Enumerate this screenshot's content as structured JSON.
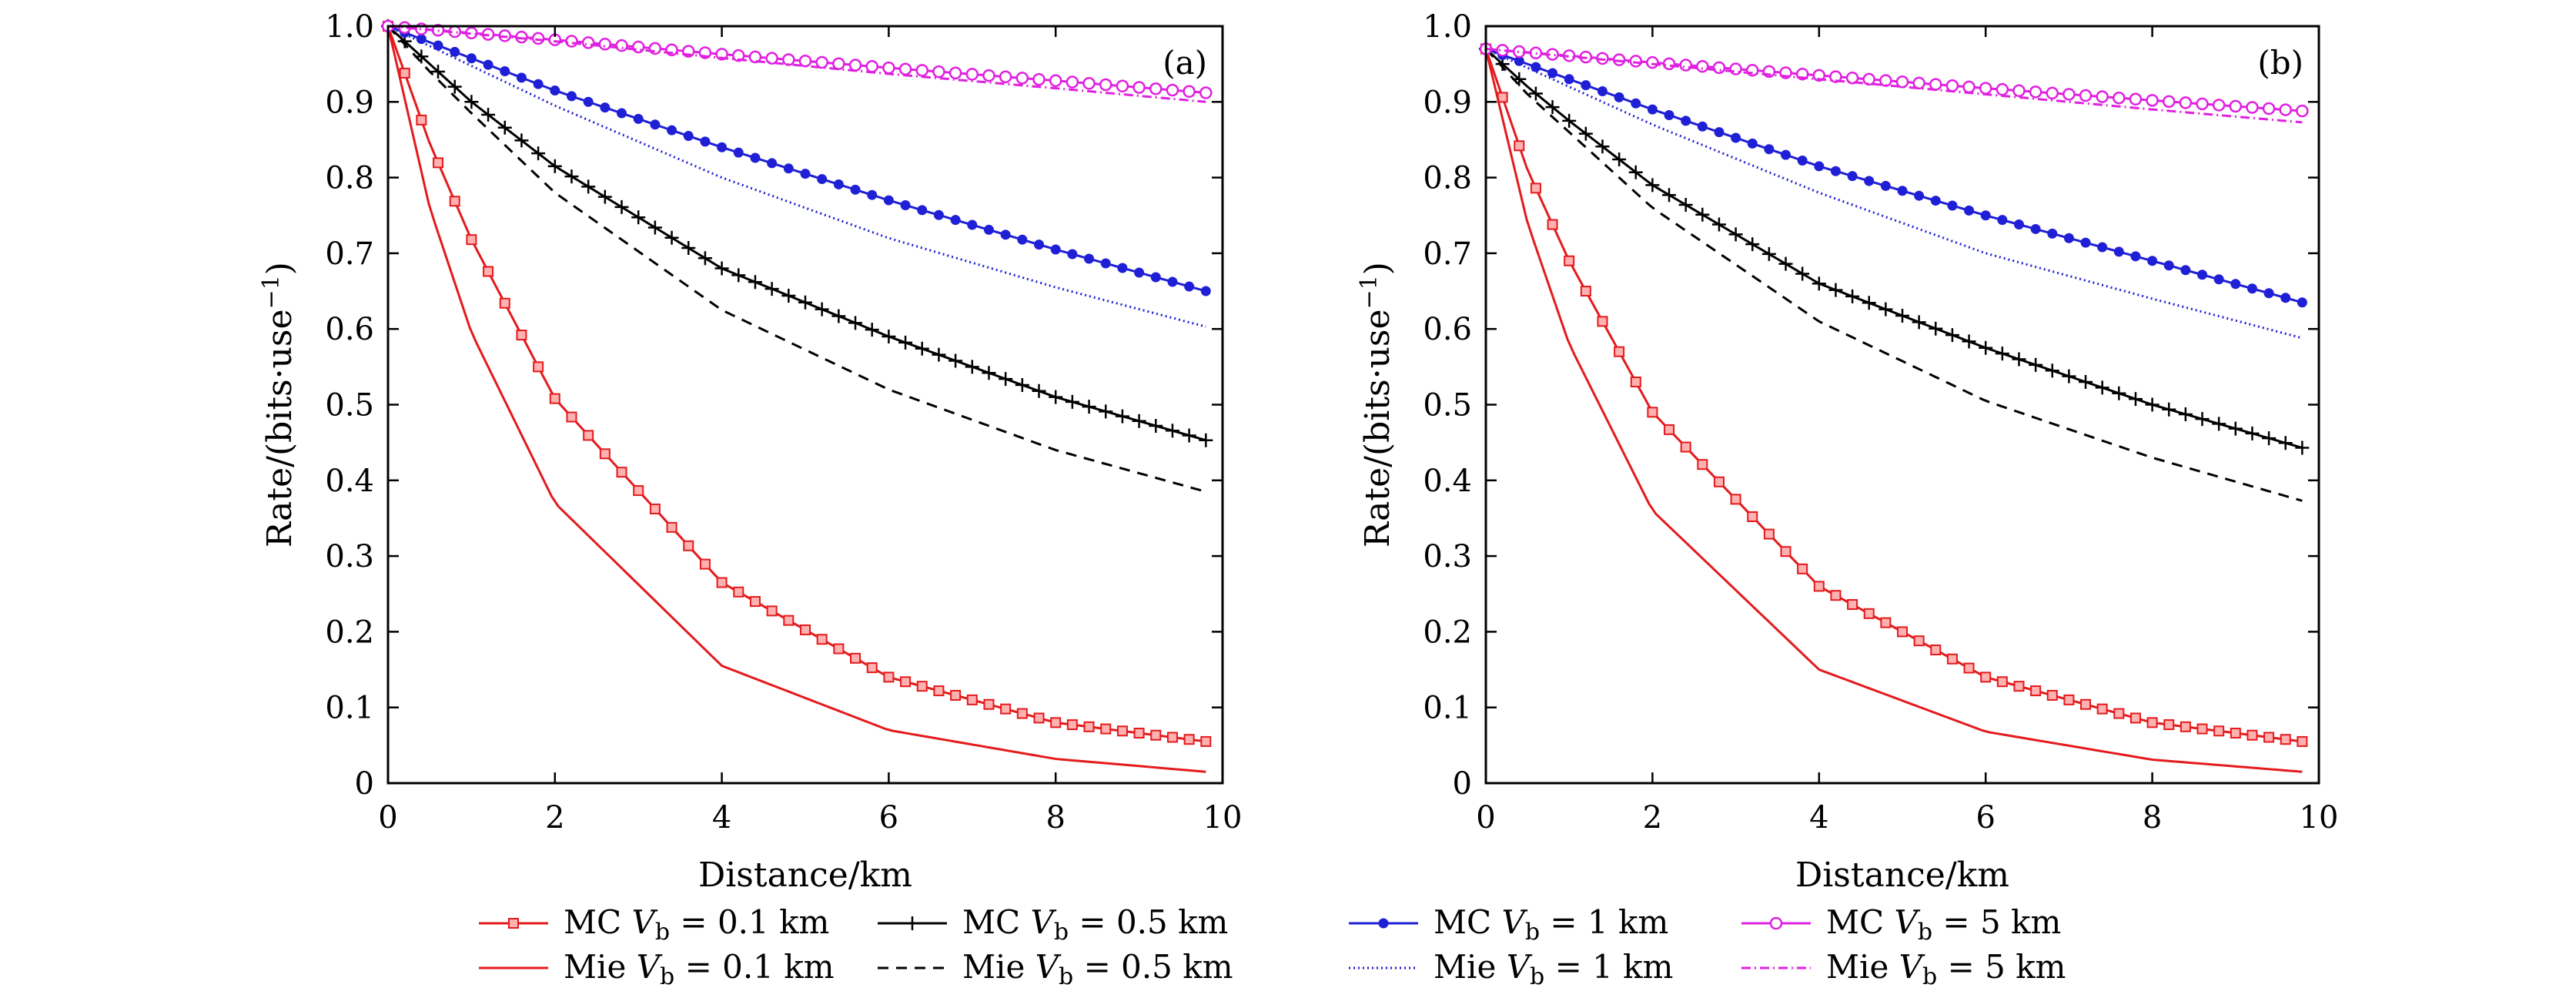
{
  "chart_data": [
    {
      "panel": "(a)",
      "type": "line",
      "xlabel": "Distance/km",
      "ylabel": "Rate/(bits·use",
      "ylabel_sup": "−1",
      "ylabel_close": ")",
      "xlim": [
        0,
        10
      ],
      "ylim": [
        0,
        1.0
      ],
      "xticks": [
        0,
        2,
        4,
        6,
        8,
        10
      ],
      "yticks": [
        0,
        0.1,
        0.2,
        0.3,
        0.4,
        0.5,
        0.6,
        0.7,
        0.8,
        0.9,
        1.0
      ],
      "ytick_labels": [
        "0",
        "0.1",
        "0.2",
        "0.3",
        "0.4",
        "0.5",
        "0.6",
        "0.7",
        "0.8",
        "0.9",
        "1.0"
      ],
      "grid": false,
      "series": [
        {
          "name": "MC V_b = 0.1 km",
          "x0": 0,
          "x1": 9.8,
          "y0": 1.0,
          "y1": 0.055,
          "points": [
            [
              0.5,
              0.845
            ],
            [
              1.0,
              0.718
            ],
            [
              2.0,
              0.508
            ],
            [
              4.0,
              0.265
            ],
            [
              6.0,
              0.14
            ],
            [
              8.0,
              0.08
            ]
          ]
        },
        {
          "name": "Mie V_b = 0.1 km",
          "x0": 0,
          "x1": 9.8,
          "y0": 1.0,
          "y1": 0.015,
          "points": [
            [
              0.5,
              0.76
            ],
            [
              1.0,
              0.595
            ],
            [
              2.0,
              0.37
            ],
            [
              4.0,
              0.155
            ],
            [
              6.0,
              0.07
            ],
            [
              8.0,
              0.032
            ]
          ]
        },
        {
          "name": "MC V_b = 0.5 km",
          "x0": 0,
          "x1": 9.8,
          "y0": 1.0,
          "y1": 0.453,
          "points": [
            [
              0.5,
              0.95
            ],
            [
              1.0,
              0.9
            ],
            [
              2.0,
              0.815
            ],
            [
              4.0,
              0.68
            ],
            [
              6.0,
              0.59
            ],
            [
              8.0,
              0.51
            ]
          ]
        },
        {
          "name": "Mie V_b = 0.5 km",
          "x0": 0,
          "x1": 9.8,
          "y0": 1.0,
          "y1": 0.385,
          "points": [
            [
              0.5,
              0.94
            ],
            [
              1.0,
              0.885
            ],
            [
              2.0,
              0.78
            ],
            [
              4.0,
              0.625
            ],
            [
              6.0,
              0.52
            ],
            [
              8.0,
              0.44
            ]
          ]
        },
        {
          "name": "MC V_b = 1 km",
          "x0": 0,
          "x1": 9.8,
          "y0": 1.0,
          "y1": 0.65,
          "points": [
            [
              2.0,
              0.915
            ],
            [
              4.0,
              0.84
            ],
            [
              6.0,
              0.77
            ],
            [
              8.0,
              0.705
            ]
          ]
        },
        {
          "name": "Mie V_b = 1 km",
          "x0": 0,
          "x1": 9.8,
          "y0": 1.0,
          "y1": 0.603,
          "points": [
            [
              2.0,
              0.895
            ],
            [
              4.0,
              0.8
            ],
            [
              6.0,
              0.72
            ],
            [
              8.0,
              0.655
            ]
          ]
        },
        {
          "name": "MC V_b = 5 km",
          "x0": 0,
          "x1": 9.8,
          "y0": 1.0,
          "y1": 0.912,
          "points": [
            [
              2.0,
              0.982
            ],
            [
              4.0,
              0.963
            ],
            [
              6.0,
              0.945
            ],
            [
              8.0,
              0.928
            ]
          ]
        },
        {
          "name": "Mie V_b = 5 km",
          "x0": 0,
          "x1": 9.8,
          "y0": 1.0,
          "y1": 0.9,
          "points": [
            [
              2.0,
              0.98
            ],
            [
              4.0,
              0.958
            ],
            [
              6.0,
              0.937
            ],
            [
              8.0,
              0.918
            ]
          ]
        }
      ]
    },
    {
      "panel": "(b)",
      "type": "line",
      "xlabel": "Distance/km",
      "ylabel": "Rate/(bits·use",
      "ylabel_sup": "−1",
      "ylabel_close": ")",
      "xlim": [
        0,
        10
      ],
      "ylim": [
        0,
        1.0
      ],
      "xticks": [
        0,
        2,
        4,
        6,
        8,
        10
      ],
      "yticks": [
        0,
        0.1,
        0.2,
        0.3,
        0.4,
        0.5,
        0.6,
        0.7,
        0.8,
        0.9,
        1.0
      ],
      "ytick_labels": [
        "0",
        "0.1",
        "0.2",
        "0.3",
        "0.4",
        "0.5",
        "0.6",
        "0.7",
        "0.8",
        "0.9",
        "1.0"
      ],
      "grid": false,
      "series": [
        {
          "name": "MC V_b = 0.1 km",
          "x0": 0,
          "x1": 9.8,
          "y0": 0.97,
          "y1": 0.055,
          "points": [
            [
              0.5,
              0.81
            ],
            [
              1.0,
              0.69
            ],
            [
              2.0,
              0.49
            ],
            [
              4.0,
              0.26
            ],
            [
              6.0,
              0.14
            ],
            [
              8.0,
              0.08
            ]
          ]
        },
        {
          "name": "Mie V_b = 0.1 km",
          "x0": 0,
          "x1": 9.8,
          "y0": 0.97,
          "y1": 0.015,
          "points": [
            [
              0.5,
              0.74
            ],
            [
              1.0,
              0.58
            ],
            [
              2.0,
              0.36
            ],
            [
              4.0,
              0.15
            ],
            [
              6.0,
              0.068
            ],
            [
              8.0,
              0.031
            ]
          ]
        },
        {
          "name": "MC V_b = 0.5 km",
          "x0": 0,
          "x1": 9.8,
          "y0": 0.97,
          "y1": 0.443,
          "points": [
            [
              0.5,
              0.92
            ],
            [
              1.0,
              0.875
            ],
            [
              2.0,
              0.79
            ],
            [
              4.0,
              0.66
            ],
            [
              6.0,
              0.575
            ],
            [
              8.0,
              0.5
            ]
          ]
        },
        {
          "name": "Mie V_b = 0.5 km",
          "x0": 0,
          "x1": 9.8,
          "y0": 0.97,
          "y1": 0.373,
          "points": [
            [
              0.5,
              0.91
            ],
            [
              1.0,
              0.86
            ],
            [
              2.0,
              0.76
            ],
            [
              4.0,
              0.61
            ],
            [
              6.0,
              0.505
            ],
            [
              8.0,
              0.43
            ]
          ]
        },
        {
          "name": "MC V_b = 1 km",
          "x0": 0,
          "x1": 9.8,
          "y0": 0.97,
          "y1": 0.635,
          "points": [
            [
              2.0,
              0.89
            ],
            [
              4.0,
              0.815
            ],
            [
              6.0,
              0.75
            ],
            [
              8.0,
              0.69
            ]
          ]
        },
        {
          "name": "Mie V_b = 1 km",
          "x0": 0,
          "x1": 9.8,
          "y0": 0.97,
          "y1": 0.588,
          "points": [
            [
              2.0,
              0.87
            ],
            [
              4.0,
              0.78
            ],
            [
              6.0,
              0.7
            ],
            [
              8.0,
              0.64
            ]
          ]
        },
        {
          "name": "MC V_b = 5 km",
          "x0": 0,
          "x1": 9.8,
          "y0": 0.97,
          "y1": 0.888,
          "points": [
            [
              2.0,
              0.952
            ],
            [
              4.0,
              0.935
            ],
            [
              6.0,
              0.918
            ],
            [
              8.0,
              0.902
            ]
          ]
        },
        {
          "name": "Mie V_b = 5 km",
          "x0": 0,
          "x1": 9.8,
          "y0": 0.97,
          "y1": 0.873,
          "points": [
            [
              2.0,
              0.95
            ],
            [
              4.0,
              0.93
            ],
            [
              6.0,
              0.91
            ],
            [
              8.0,
              0.89
            ]
          ]
        }
      ]
    }
  ],
  "styles": [
    {
      "color": "#e41a1c",
      "dash": "",
      "marker": "square"
    },
    {
      "color": "#e41a1c",
      "dash": "",
      "marker": "none"
    },
    {
      "color": "#000000",
      "dash": "",
      "marker": "plus"
    },
    {
      "color": "#000000",
      "dash": "14,10",
      "marker": "none"
    },
    {
      "color": "#1f1fd6",
      "dash": "",
      "marker": "dot"
    },
    {
      "color": "#1f1fd6",
      "dash": "2,4",
      "marker": "none"
    },
    {
      "color": "#e020e0",
      "dash": "",
      "marker": "circle"
    },
    {
      "color": "#e020e0",
      "dash": "12,5,2,5",
      "marker": "none"
    }
  ],
  "legend": {
    "placement": "bottom-center",
    "entries": [
      {
        "prefix": "MC",
        "sub": "b",
        "value": "= 0.1 km",
        "series": 0
      },
      {
        "prefix": "MC",
        "sub": "b",
        "value": "= 0.5 km",
        "series": 2
      },
      {
        "prefix": "MC",
        "sub": "b",
        "value": "= 1 km",
        "series": 4
      },
      {
        "prefix": "MC",
        "sub": "b",
        "value": "= 5 km",
        "series": 6
      },
      {
        "prefix": "Mie",
        "sub": "b",
        "value": "= 0.1 km",
        "series": 1
      },
      {
        "prefix": "Mie",
        "sub": "b",
        "value": "= 0.5 km",
        "series": 3
      },
      {
        "prefix": "Mie",
        "sub": "b",
        "value": "= 1 km",
        "series": 5
      },
      {
        "prefix": "Mie",
        "sub": "b",
        "value": "= 5 km",
        "series": 7
      }
    ]
  }
}
